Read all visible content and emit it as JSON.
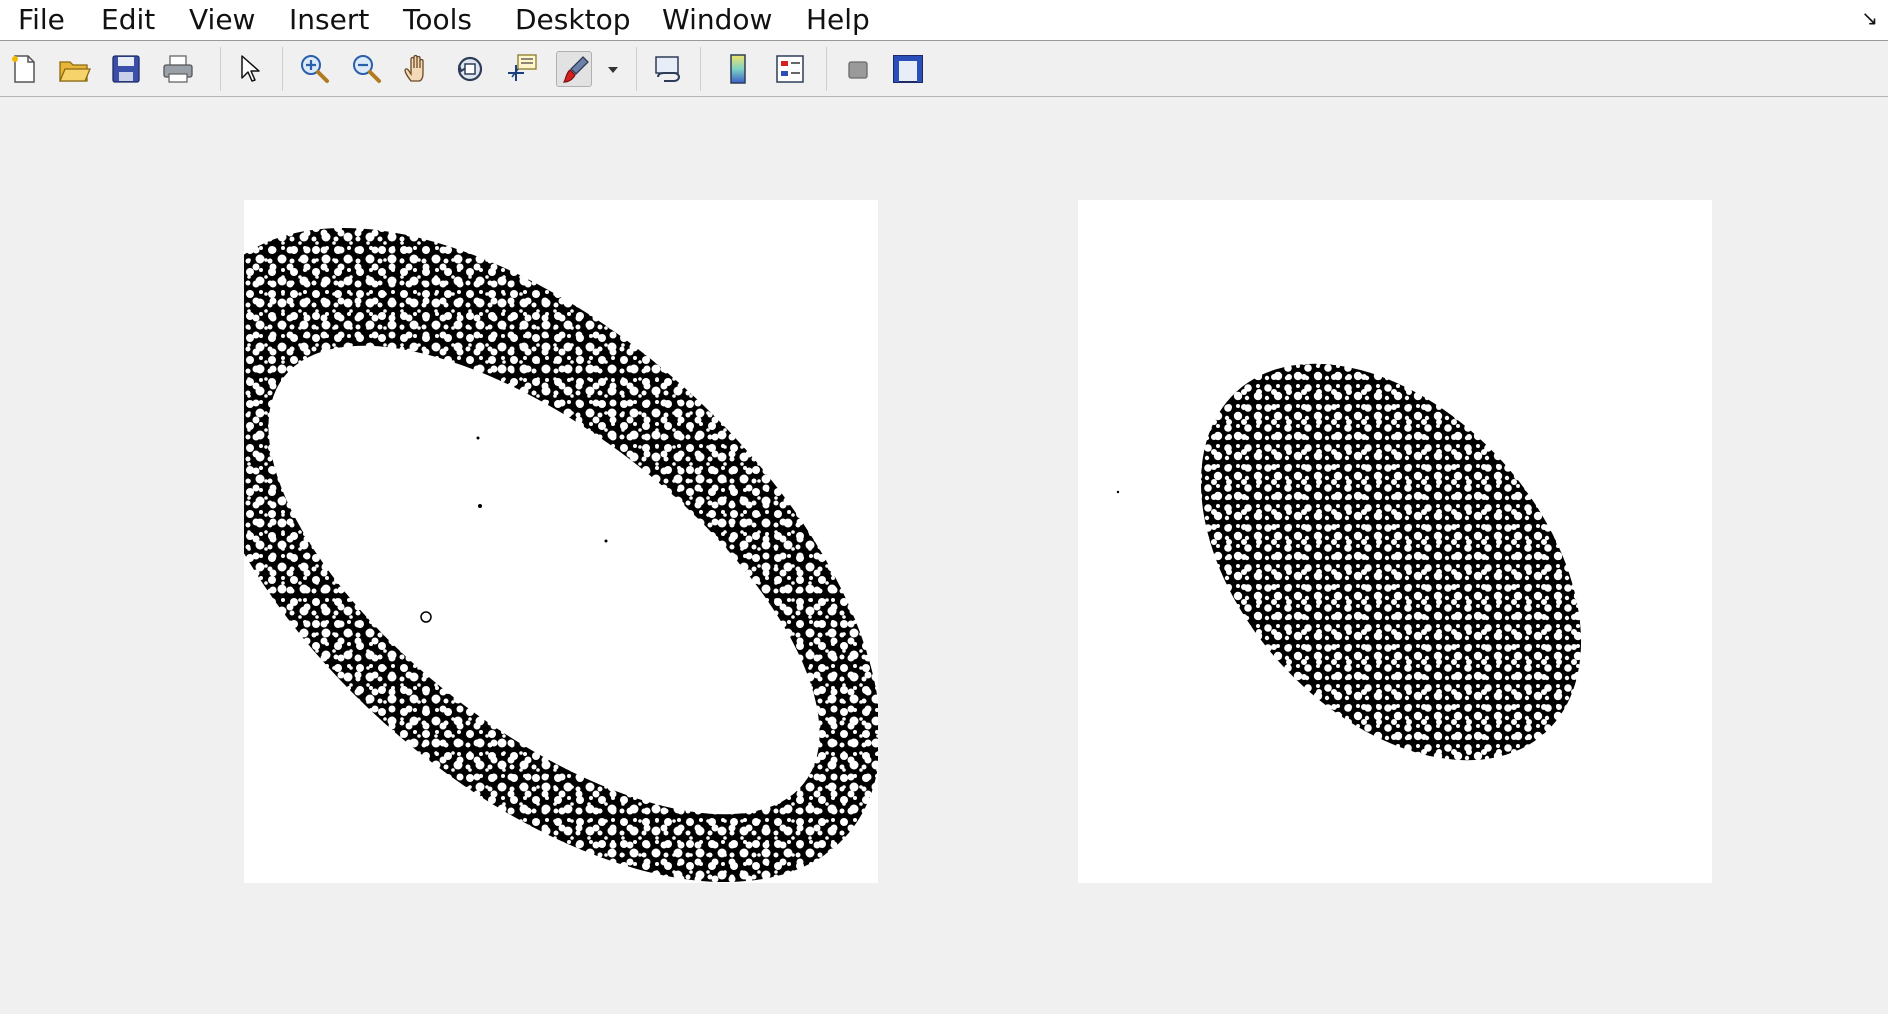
{
  "menu": {
    "file": "File",
    "edit": "Edit",
    "view": "View",
    "insert": "Insert",
    "tools": "Tools",
    "desktop": "Desktop",
    "window": "Window",
    "help": "Help"
  },
  "toolbar": {
    "buttons": [
      "new-figure",
      "open-file",
      "save-figure",
      "print-figure",
      "edit-plot",
      "zoom-in",
      "zoom-out",
      "pan",
      "rotate-3d",
      "data-cursor",
      "brush",
      "brush-dropdown",
      "link-plot",
      "insert-colorbar",
      "insert-legend",
      "hide-plot-tools",
      "show-plot-tools"
    ],
    "active": "brush"
  },
  "axes": [
    {
      "image": "binary-mask-ring",
      "description_colors": {
        "foreground": "#000000",
        "background": "#ffffff"
      }
    },
    {
      "image": "binary-mask-ellipse",
      "description_colors": {
        "foreground": "#000000",
        "background": "#ffffff"
      }
    }
  ],
  "colors": {
    "figure_background": "#f0f0f0",
    "menubar_background": "#ffffff",
    "axes_background": "#ffffff"
  }
}
